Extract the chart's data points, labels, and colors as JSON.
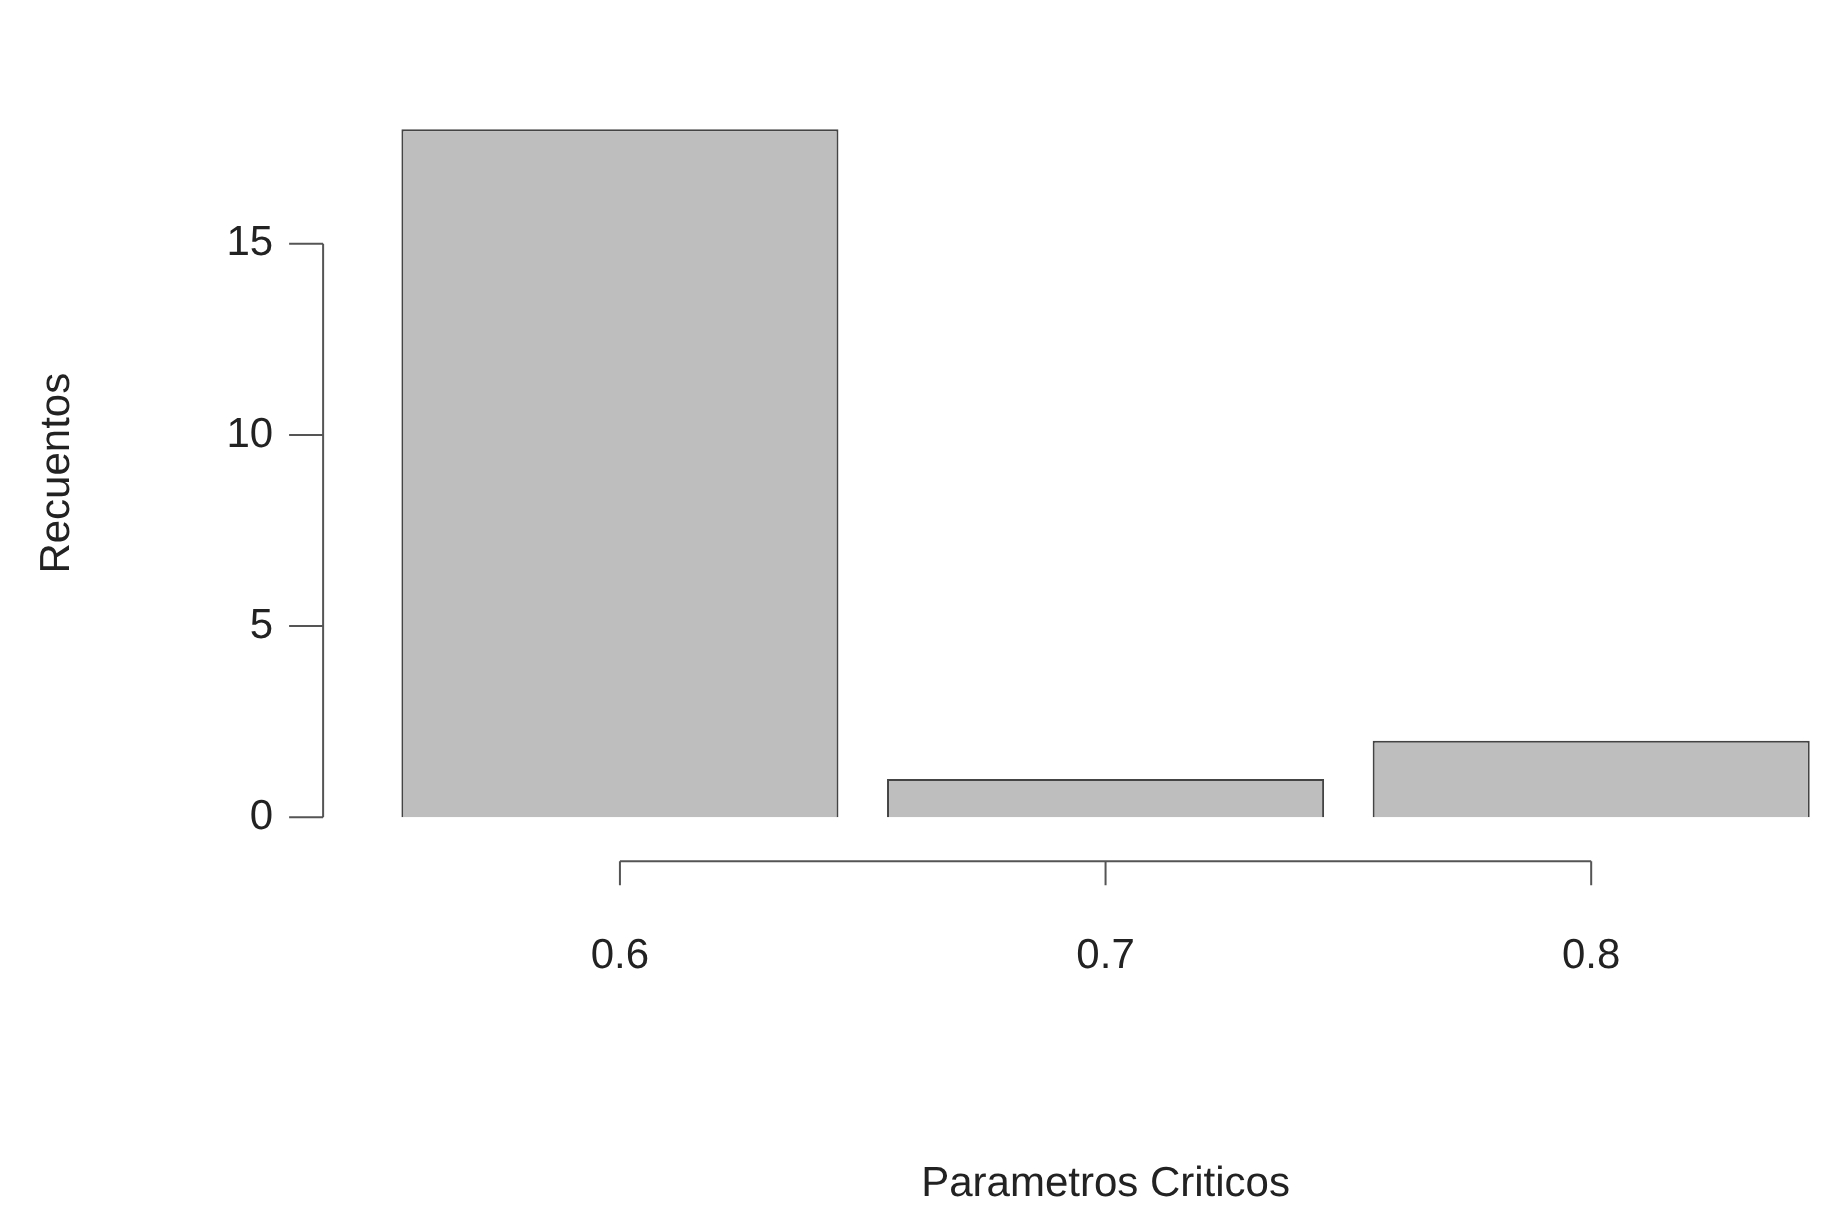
{
  "chart_data": {
    "type": "bar",
    "xlabel": "Parametros Criticos",
    "ylabel": "Recuentos",
    "categories": [
      "0.6",
      "0.7",
      "0.8"
    ],
    "values": [
      18,
      1,
      2
    ],
    "color": "#bebebe",
    "ylim": [
      0,
      18
    ],
    "yticks": [
      0,
      5,
      10,
      15
    ],
    "grid": false
  }
}
